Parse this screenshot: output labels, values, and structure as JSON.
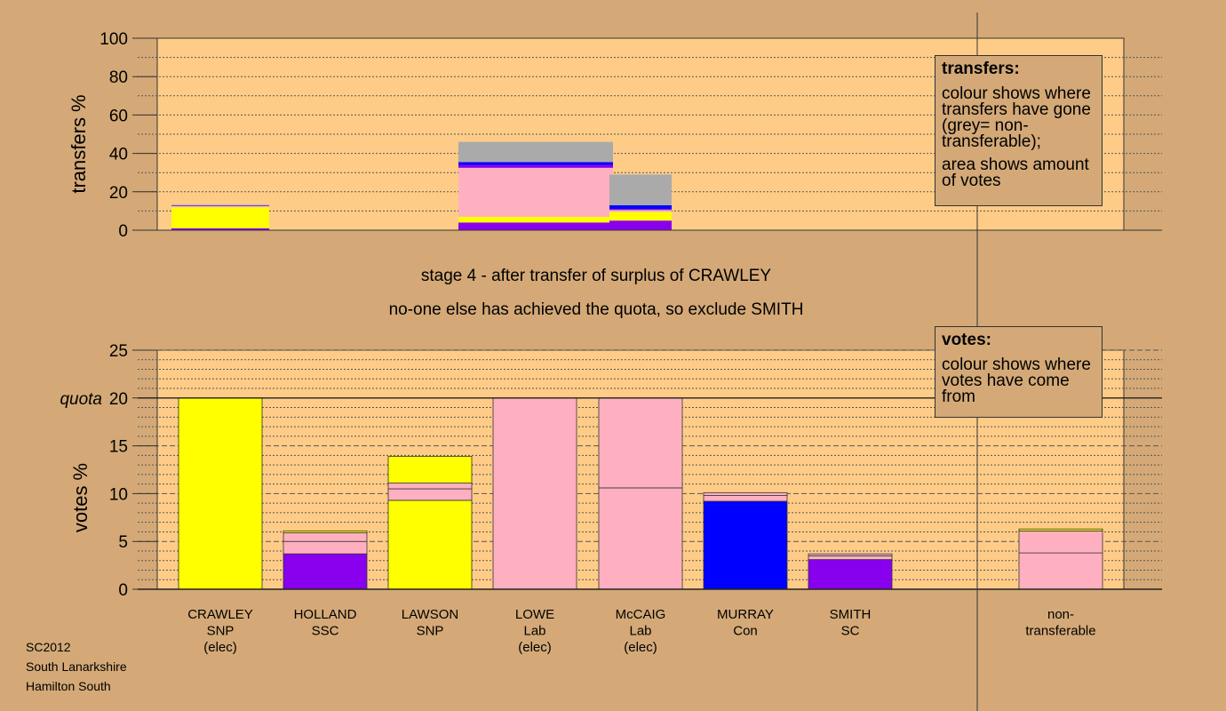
{
  "colors": {
    "background": "#d4a977",
    "plot_area": "#ffcc88",
    "SNP": "#ffff00",
    "SSC": "#8800ee",
    "SC": "#8800ee",
    "Lab": "#ffb0c0",
    "Con": "#0000ff",
    "nontransferable": "#aaaaaa"
  },
  "stage": {
    "line1": "stage 4 - after transfer of surplus of CRAWLEY",
    "line2": "no-one else has achieved the quota, so exclude SMITH"
  },
  "legend_transfers": {
    "title": "transfers:",
    "line1": "colour shows where transfers have gone (grey= non-transferable);",
    "line2": "area shows amount of votes"
  },
  "legend_votes": {
    "title": "votes:",
    "line1": "colour shows where votes have come from"
  },
  "footer": {
    "line1": "SC2012",
    "line2": "South Lanarkshire",
    "line3": "Hamilton South"
  },
  "chart_data": [
    {
      "type": "bar",
      "title": "",
      "ylabel": "transfers %",
      "ylim": [
        0,
        100
      ],
      "yticks": [
        0,
        20,
        40,
        60,
        80,
        100
      ],
      "grid": true,
      "bars": [
        {
          "name": "transfer-bar-1",
          "segments": [
            {
              "color": "SSC",
              "value": 1
            },
            {
              "color": "SNP",
              "value": 11
            },
            {
              "color": "Lab",
              "value": 0.7
            },
            {
              "color": "Con",
              "value": 0.3
            },
            {
              "color": "nontransferable",
              "value": 0.3
            }
          ]
        },
        {
          "name": "transfer-bar-2",
          "segments": [
            {
              "color": "SSC",
              "value": 4
            },
            {
              "color": "SNP",
              "value": 3
            },
            {
              "color": "Lab",
              "value": 25.5
            },
            {
              "color": "SSC",
              "value": 1.5
            },
            {
              "color": "Con",
              "value": 1.5
            },
            {
              "color": "nontransferable",
              "value": 10.5
            }
          ]
        },
        {
          "name": "transfer-bar-3",
          "segments": [
            {
              "color": "SSC",
              "value": 5
            },
            {
              "color": "SNP",
              "value": 4.5
            },
            {
              "color": "Lab",
              "value": 1
            },
            {
              "color": "SSC",
              "value": 0.5
            },
            {
              "color": "Con",
              "value": 2
            },
            {
              "color": "nontransferable",
              "value": 16
            }
          ]
        }
      ]
    },
    {
      "type": "bar",
      "title": "",
      "ylabel": "votes %",
      "ylim": [
        0,
        25
      ],
      "yticks": [
        0,
        5,
        10,
        15,
        20,
        25
      ],
      "quota": 20,
      "quota_label": "quota",
      "grid": true,
      "categories": [
        {
          "lines": [
            "CRAWLEY",
            "SNP",
            "(elec)"
          ]
        },
        {
          "lines": [
            "HOLLAND",
            "SSC"
          ]
        },
        {
          "lines": [
            "LAWSON",
            "SNP"
          ]
        },
        {
          "lines": [
            "LOWE",
            "Lab",
            "(elec)"
          ]
        },
        {
          "lines": [
            "McCAIG",
            "Lab",
            "(elec)"
          ]
        },
        {
          "lines": [
            "MURRAY",
            "Con"
          ]
        },
        {
          "lines": [
            "SMITH",
            "SC"
          ]
        },
        {
          "lines": []
        },
        {
          "lines": [
            "non-",
            "transferable"
          ]
        }
      ],
      "stacks": [
        [
          {
            "color": "SNP",
            "value": 20
          }
        ],
        [
          {
            "color": "SSC",
            "value": 3.7
          },
          {
            "color": "Lab",
            "value": 1.3
          },
          {
            "color": "Lab",
            "value": 0.9
          },
          {
            "color": "SNP",
            "value": 0.2
          }
        ],
        [
          {
            "color": "SNP",
            "value": 9.3
          },
          {
            "color": "Lab",
            "value": 1.2
          },
          {
            "color": "Lab",
            "value": 0.6
          },
          {
            "color": "SNP",
            "value": 2.8
          }
        ],
        [
          {
            "color": "Lab",
            "value": 20
          }
        ],
        [
          {
            "color": "Lab",
            "value": 10.6
          },
          {
            "color": "Lab",
            "value": 9.4
          }
        ],
        [
          {
            "color": "Con",
            "value": 9.2
          },
          {
            "color": "Lab",
            "value": 0.6
          },
          {
            "color": "Lab",
            "value": 0.3
          }
        ],
        [
          {
            "color": "SSC",
            "value": 3.1
          },
          {
            "color": "Lab",
            "value": 0.4
          },
          {
            "color": "Lab",
            "value": 0.2
          }
        ],
        [],
        [
          {
            "color": "Lab",
            "value": 3.8
          },
          {
            "color": "Lab",
            "value": 2.3
          },
          {
            "color": "SNP",
            "value": 0.2
          }
        ]
      ]
    }
  ]
}
